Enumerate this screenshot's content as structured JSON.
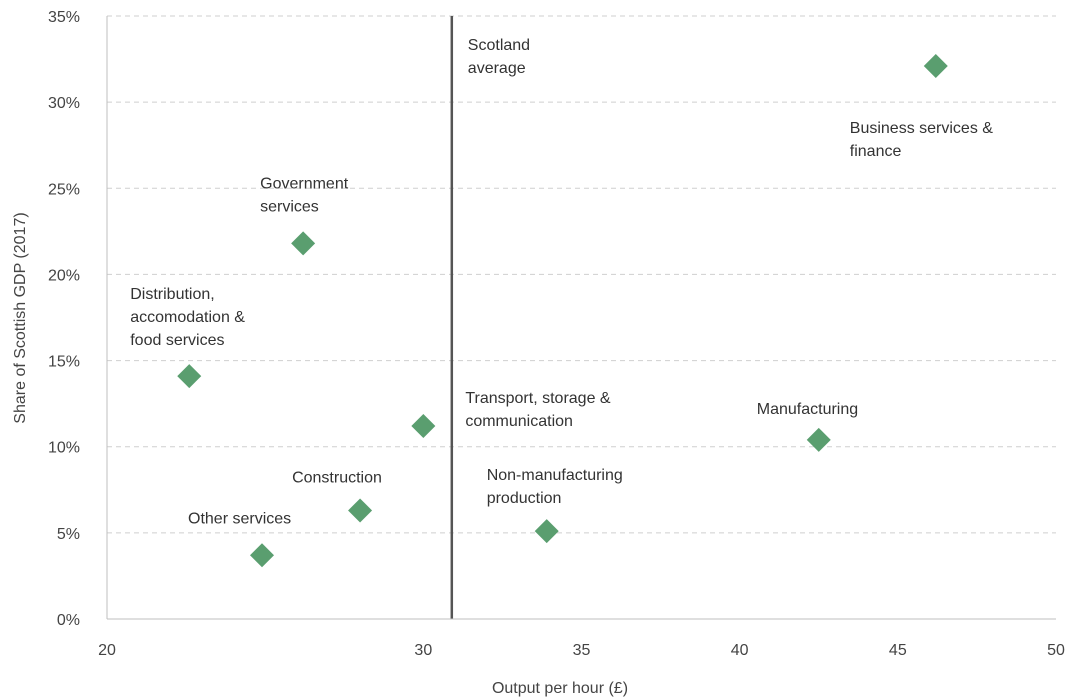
{
  "chart_data": {
    "type": "scatter",
    "title": "",
    "xlabel": "Output per hour (£)",
    "ylabel": "Share of Scottish GDP (2017)",
    "xlim": [
      20,
      50
    ],
    "ylim": [
      0,
      35
    ],
    "x_ticks": [
      "20",
      "30",
      "35",
      "40",
      "45",
      "50"
    ],
    "y_ticks": [
      "0%",
      "5%",
      "10%",
      "15%",
      "20%",
      "25%",
      "30%",
      "35%"
    ],
    "grid": "horizontal dashed",
    "marker": "diamond",
    "marker_color": "#5a9e6f",
    "reference_line": {
      "x": 30.9,
      "label": [
        "Scotland",
        "average"
      ],
      "color": "#555555"
    },
    "points": [
      {
        "label": [
          "Business services &",
          "finance"
        ],
        "x": 46.2,
        "y": 32.1
      },
      {
        "label": [
          "Government",
          "services"
        ],
        "x": 26.2,
        "y": 21.8
      },
      {
        "label": [
          "Distribution,",
          "accomodation &",
          "food services"
        ],
        "x": 22.6,
        "y": 14.1
      },
      {
        "label": [
          "Transport, storage &",
          "communication"
        ],
        "x": 30.0,
        "y": 11.2
      },
      {
        "label": [
          "Manufacturing"
        ],
        "x": 42.5,
        "y": 10.4
      },
      {
        "label": [
          "Construction"
        ],
        "x": 28.0,
        "y": 6.3
      },
      {
        "label": [
          "Non-manufacturing",
          "production"
        ],
        "x": 33.9,
        "y": 5.1
      },
      {
        "label": [
          "Other services"
        ],
        "x": 24.9,
        "y": 3.7
      }
    ]
  }
}
